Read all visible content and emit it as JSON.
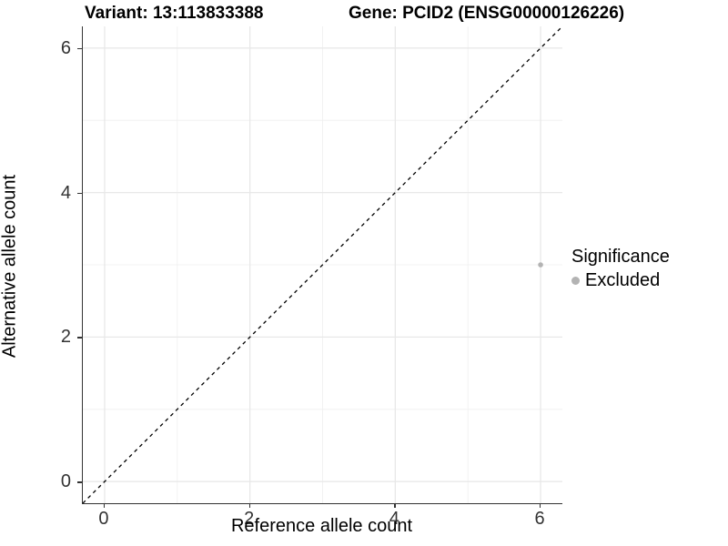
{
  "title": {
    "variant": "Variant: 13:113833388",
    "gene": "Gene: PCID2 (ENSG00000126226)"
  },
  "legend": {
    "title": "Significance",
    "items": [
      {
        "label": "Excluded",
        "color": "#b3b3b3"
      }
    ]
  },
  "chart_data": {
    "type": "scatter",
    "title": "Variant: 13:113833388    Gene: PCID2 (ENSG00000126226)",
    "xlabel": "Reference allele count",
    "ylabel": "Alternative allele count",
    "xlim": [
      -0.3,
      6.3
    ],
    "ylim": [
      -0.3,
      6.3
    ],
    "x_major_ticks": [
      0,
      2,
      4,
      6
    ],
    "y_major_ticks": [
      0,
      2,
      4,
      6
    ],
    "x_minor_ticks": [
      1,
      3,
      5
    ],
    "y_minor_ticks": [
      1,
      3,
      5
    ],
    "grid": "on",
    "legend_position": "right",
    "series": [
      {
        "name": "Excluded",
        "color": "#b3b3b3",
        "points": [
          {
            "x": 6,
            "y": 3
          }
        ]
      }
    ],
    "reference_line": {
      "slope": 1,
      "intercept": 0,
      "style": "dashed",
      "color": "#000000"
    },
    "colors": {
      "grid_major": "#e8e8e8",
      "grid_minor": "#efefef",
      "axis": "#333333",
      "point": "#b3b3b3"
    }
  }
}
